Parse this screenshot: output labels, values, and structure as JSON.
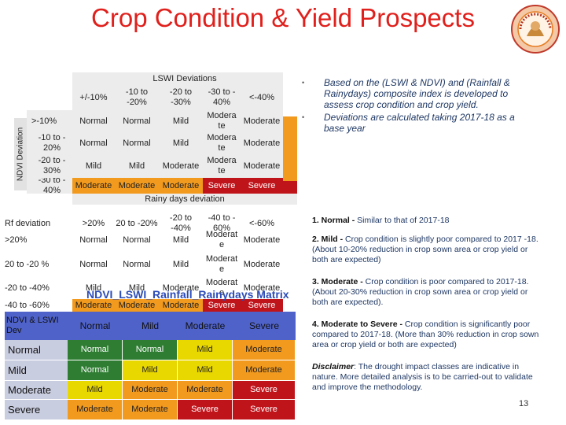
{
  "title": "Crop Condition & Yield Prospects",
  "colors": {
    "normal": "#2e7d32",
    "mild": "#e9d700",
    "moderate": "#f29a1e",
    "severe": "#c0141b",
    "title_red": "#e0201c",
    "header_blue": "#4f62c9",
    "text_blue": "#1f3864"
  },
  "lswi_table": {
    "header": "LSWI Deviations",
    "side_label": "NDVI Deviation",
    "columns": [
      "+/-10%",
      "-10 to -20%",
      "-20 to -30%",
      "-30 to - 40%",
      "<-40%"
    ],
    "rows": [
      {
        "label": ">-10%",
        "cells": [
          "Normal",
          "Normal",
          "Mild",
          "Modera te",
          "Moderate"
        ]
      },
      {
        "label": "-10 to - 20%",
        "cells": [
          "Normal",
          "Normal",
          "Mild",
          "Modera te",
          "Moderate"
        ]
      },
      {
        "label": "-20 to - 30%",
        "cells": [
          "Mild",
          "Mild",
          "Moderate",
          "Modera te",
          "Moderate"
        ]
      },
      {
        "label": "-30 to - 40%",
        "cells": [
          "Moderate",
          "Moderate",
          "Moderate",
          "Severe",
          "Severe"
        ]
      }
    ]
  },
  "rainy_table": {
    "header": "Rainy days deviation",
    "corner": "Rf deviation",
    "columns": [
      ">20%",
      "20 to -20%",
      "-20 to -40%",
      "-40 to - 60%",
      "<-60%"
    ],
    "rows": [
      {
        "label": ">20%",
        "cells": [
          "Normal",
          "Normal",
          "Mild",
          "Moderat e",
          "Moderate"
        ]
      },
      {
        "label": "20 to -20 %",
        "cells": [
          "Normal",
          "Normal",
          "Mild",
          "Moderat e",
          "Moderate"
        ]
      },
      {
        "label": "-20 to -40%",
        "cells": [
          "Mild",
          "Mild",
          "Moderate",
          "Moderat e",
          "Moderate"
        ]
      },
      {
        "label": "-40 to -60%",
        "cells": [
          "Moderate",
          "Moderate",
          "Moderate",
          "Severe",
          "Severe"
        ]
      }
    ]
  },
  "overlay_title": "NDVI_LSWI_Rainfall_Rainydays Matrix",
  "combined_table": {
    "corner": "NDVI & LSWI Dev",
    "columns": [
      "Normal",
      "Mild",
      "Moderate",
      "Severe"
    ],
    "rows": [
      {
        "label": "Normal",
        "cells": [
          "Normal",
          "Normal",
          "Mild",
          "Moderate"
        ]
      },
      {
        "label": "Mild",
        "cells": [
          "Normal",
          "Mild",
          "Mild",
          "Moderate"
        ]
      },
      {
        "label": "Moderate",
        "cells": [
          "Mild",
          "Moderate",
          "Moderate",
          "Severe"
        ]
      },
      {
        "label": "Severe",
        "cells": [
          "Moderate",
          "Moderate",
          "Severe",
          "Severe"
        ]
      }
    ]
  },
  "bullets": [
    "Based on the (LSWI & NDVI) and (Rainfall & Rainydays) composite index is developed to assess crop condition and crop yield.",
    "Deviations are calculated taking 2017-18 as a base year"
  ],
  "categories": [
    {
      "head": "1. Normal -",
      "text": " Similar to that of 2017-18"
    },
    {
      "head": "2. Mild -",
      "text": " Crop condition is slightly poor compared to 2017 -18. (About 10-20% reduction in crop sown area or crop yield or both are expected)"
    },
    {
      "head": "3. Moderate -",
      "text": " Crop condition is poor compared to 2017-18. (About 20-30% reduction in crop sown area or crop yield or both are expected)."
    },
    {
      "head": "4. Moderate to Severe -",
      "text": " Crop condition is significantly poor compared to 2017-18. (More than 30% reduction in crop sown area or crop yield or both are expected)"
    }
  ],
  "disclaimer": {
    "label": "Disclaimer",
    "text": ": The drought impact classes are indicative in nature. More detailed analysis is to be carried-out to validate and improve the methodology."
  },
  "page_number": "13"
}
